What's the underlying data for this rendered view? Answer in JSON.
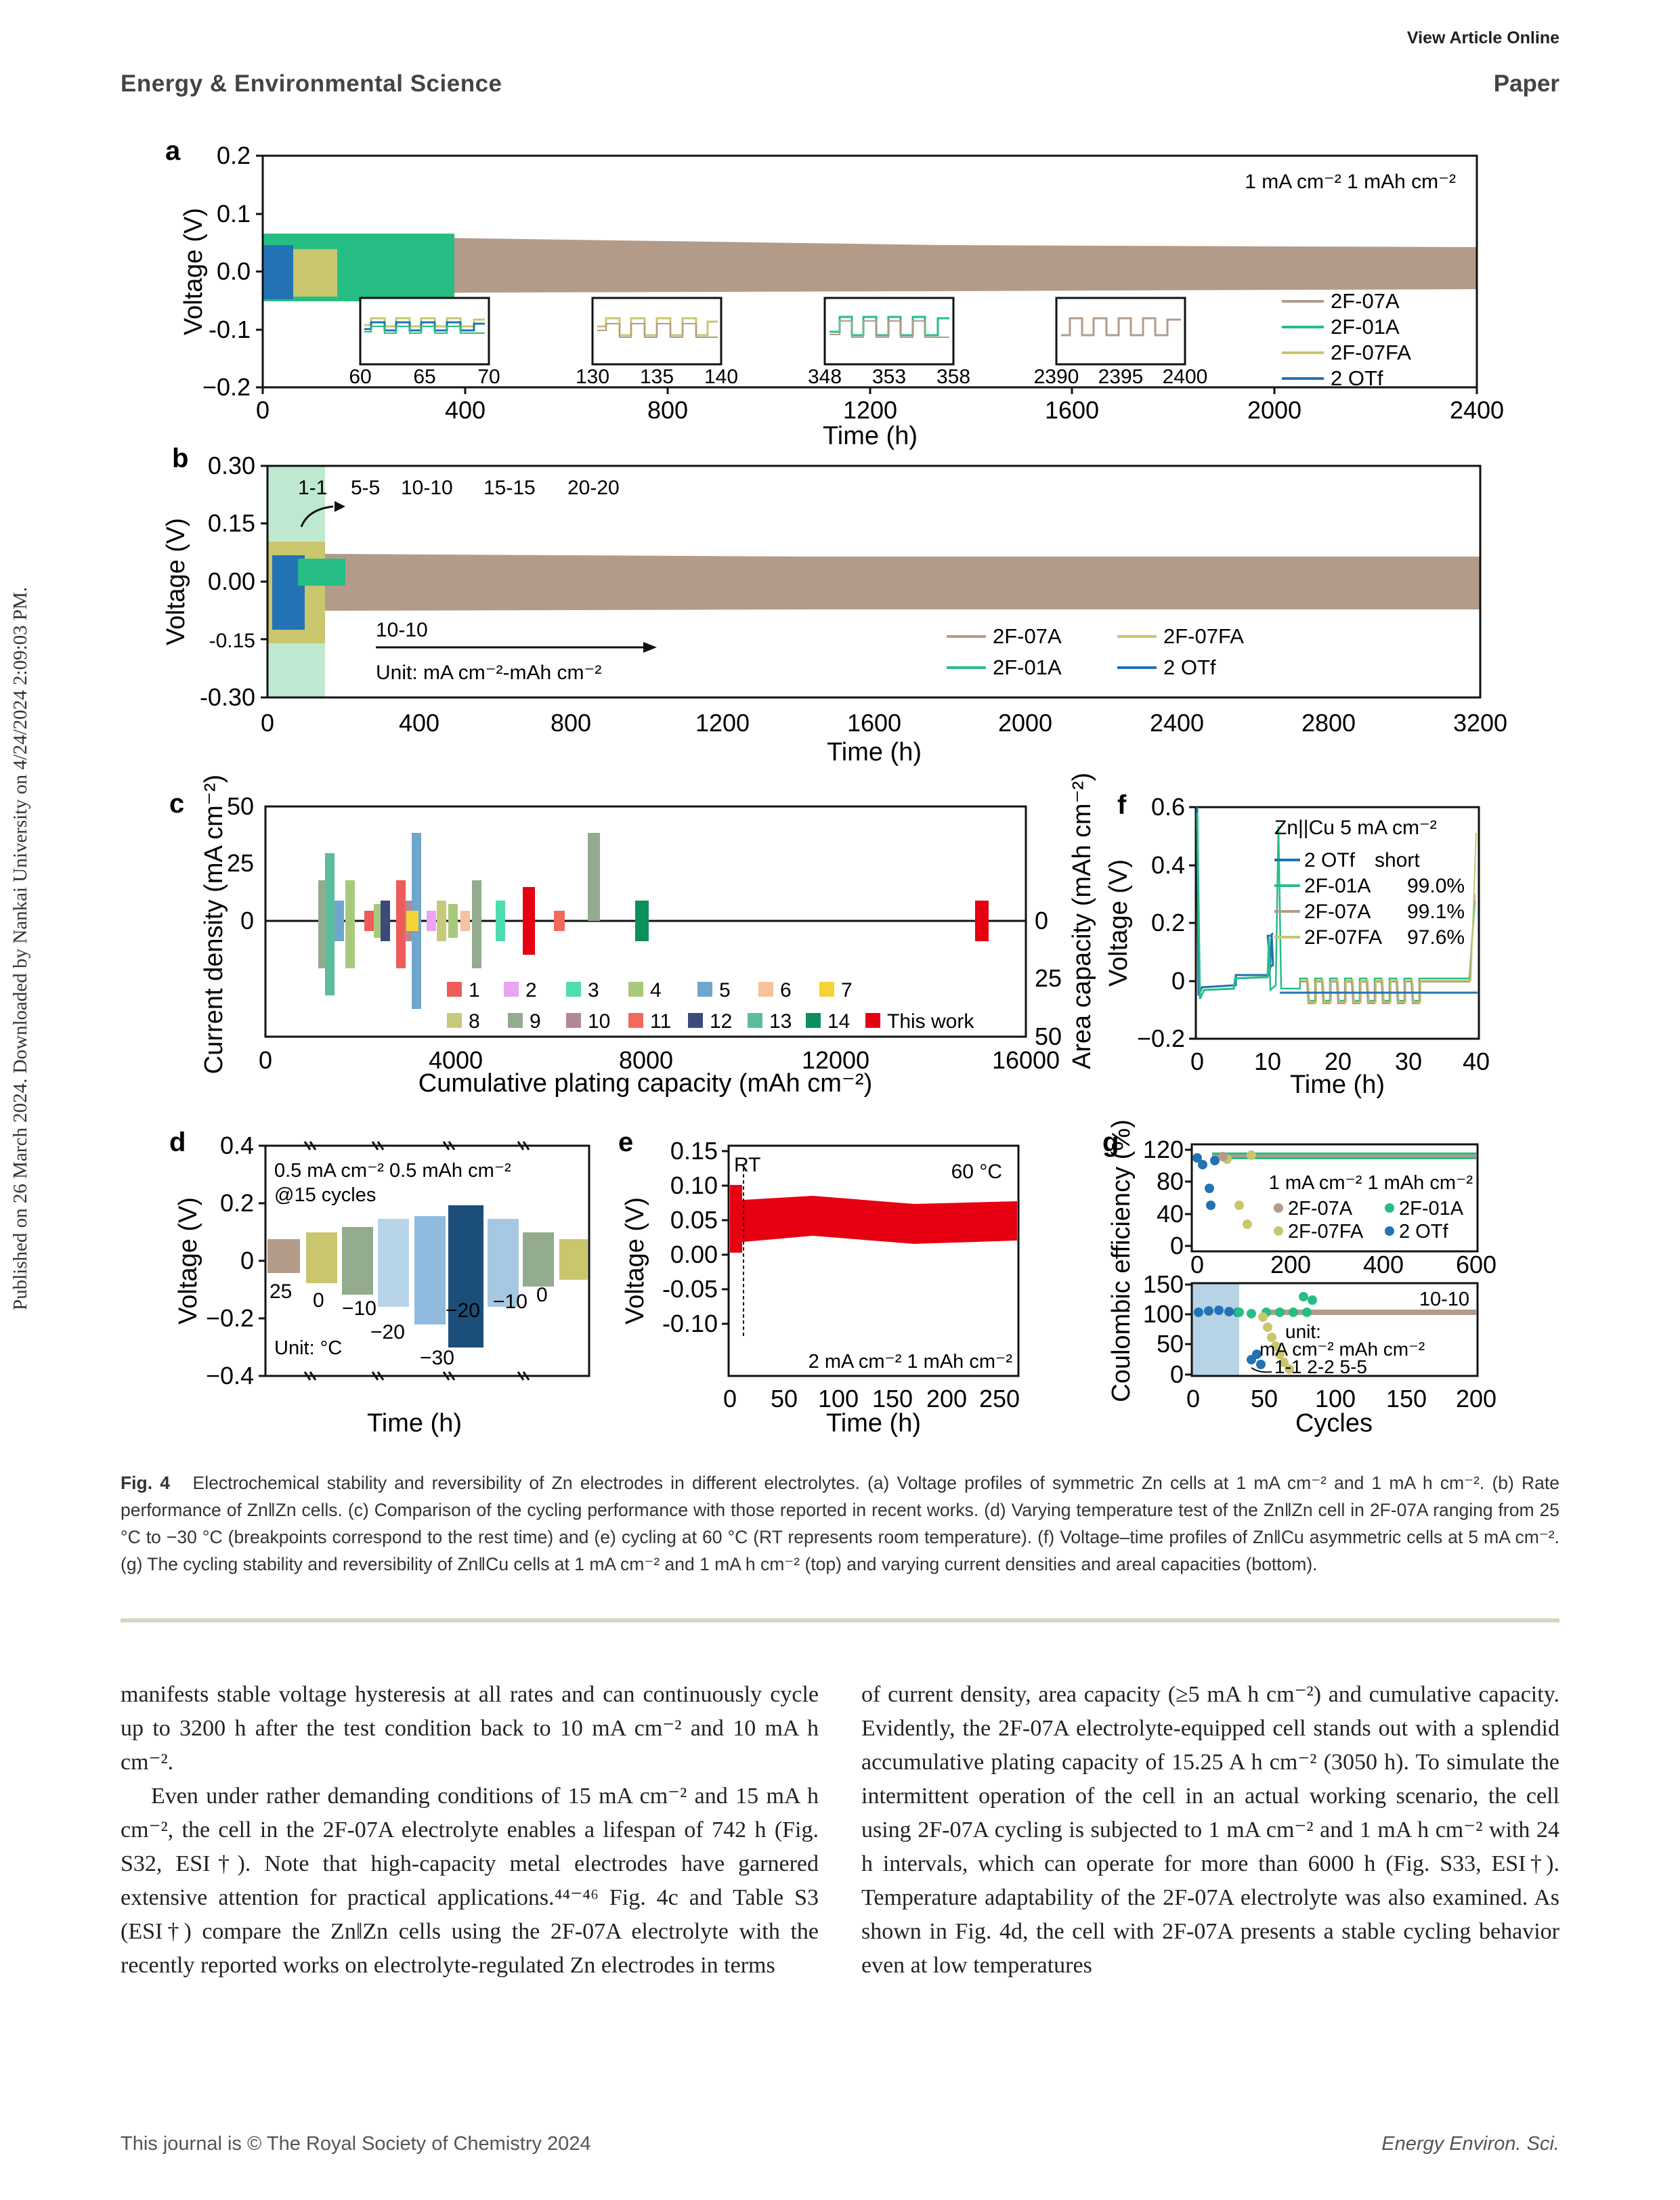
{
  "header": {
    "view_online": "View Article Online",
    "journal": "Energy & Environmental Science",
    "section": "Paper"
  },
  "sidebar_text": "Published on 26 March 2024. Downloaded by Nankai University on 4/24/2024 2:09:03 PM.",
  "colors": {
    "brown": "#b39b8a",
    "green": "#26be84",
    "yellow": "#c9c66e",
    "blue": "#2372b4",
    "red": "#e60012",
    "shade": "#bfe8d0"
  },
  "figure": {
    "panel_a": {
      "label": "a",
      "ylabel": "Voltage (V)",
      "xlabel": "Time (h)",
      "condition": "1 mA cm⁻²  1 mAh cm⁻²",
      "yticks": [
        "0.2",
        "0.1",
        "0.0",
        "-0.1",
        "−0.2"
      ],
      "xticks": [
        "0",
        "400",
        "800",
        "1200",
        "1600",
        "2000",
        "2400"
      ],
      "legend": [
        "2F-07A",
        "2F-01A",
        "2F-07FA",
        "2 OTf"
      ],
      "inset_ticks": [
        [
          "60",
          "65",
          "70"
        ],
        [
          "130",
          "135",
          "140"
        ],
        [
          "348",
          "353",
          "358"
        ],
        [
          "2390",
          "2395",
          "2400"
        ]
      ]
    },
    "panel_b": {
      "label": "b",
      "ylabel": "Voltage (V)",
      "xlabel": "Time (h)",
      "yticks": [
        "0.30",
        "0.15",
        "0.00",
        "-0.15",
        "-0.30"
      ],
      "xticks": [
        "0",
        "400",
        "800",
        "1200",
        "1600",
        "2000",
        "2400",
        "2800",
        "3200"
      ],
      "rates": [
        "1-1",
        "5-5",
        "10-10",
        "15-15",
        "20-20"
      ],
      "back_label": "10-10",
      "unit": "Unit: mA cm⁻²-mAh cm⁻²",
      "legend": [
        "2F-07A",
        "2F-01A",
        "2F-07FA",
        "2 OTf"
      ]
    },
    "panel_c": {
      "label": "c",
      "ylabel": "Current density (mA cm⁻²)",
      "ylabel_right": "Area capacity (mAh cm⁻²)",
      "xlabel": "Cumulative plating capacity (mAh cm⁻²)",
      "yticks": [
        "50",
        "25",
        "0"
      ],
      "yticks_right": [
        "0",
        "25",
        "50"
      ],
      "xticks": [
        "0",
        "4000",
        "8000",
        "12000",
        "16000"
      ],
      "legend": [
        "1",
        "2",
        "3",
        "4",
        "5",
        "6",
        "7",
        "8",
        "9",
        "10",
        "11",
        "12",
        "13",
        "14",
        "This work"
      ],
      "legend_colors": [
        "#ef5b5b",
        "#e9a4f2",
        "#4fdcb0",
        "#a8c97c",
        "#6fa6cc",
        "#f6c29d",
        "#f6d336",
        "#c7c97b",
        "#93ab8e",
        "#b38796",
        "#f26a5c",
        "#3c4a7a",
        "#5cbd9c",
        "#0c8f5b",
        "#e60012"
      ]
    },
    "panel_d": {
      "label": "d",
      "ylabel": "Voltage (V)",
      "xlabel": "Time (h)",
      "yticks": [
        "0.4",
        "0.2",
        "0",
        "−0.2",
        "−0.4"
      ],
      "condition": "0.5 mA cm⁻² 0.5 mAh cm⁻²",
      "cycles": "@15 cycles",
      "temps": [
        "25",
        "0",
        "−10",
        "−20",
        "−30",
        "−20",
        "−10",
        "0"
      ],
      "unit": "Unit: °C"
    },
    "panel_e": {
      "label": "e",
      "ylabel": "Voltage (V)",
      "xlabel": "Time (h)",
      "yticks": [
        "0.15",
        "0.10",
        "0.05",
        "0.00",
        "-0.05",
        "-0.10"
      ],
      "xticks": [
        "0",
        "50",
        "100",
        "150",
        "200",
        "250"
      ],
      "rt": "RT",
      "temp": "60 °C",
      "condition": "2 mA cm⁻² 1 mAh cm⁻²"
    },
    "panel_f": {
      "label": "f",
      "ylabel": "Voltage (V)",
      "xlabel": "Time (h)",
      "yticks": [
        "0.6",
        "0.4",
        "0.2",
        "0",
        "−0.2"
      ],
      "xticks": [
        "0",
        "10",
        "20",
        "30",
        "40"
      ],
      "title": "Zn||Cu   5 mA cm⁻²",
      "legend": [
        {
          "name": "2 OTf",
          "value": "short"
        },
        {
          "name": "2F-01A",
          "value": "99.0%"
        },
        {
          "name": "2F-07A",
          "value": "99.1%"
        },
        {
          "name": "2F-07FA",
          "value": "97.6%"
        }
      ]
    },
    "panel_g": {
      "label": "g",
      "ylabel": "Coulombic efficiency (%)",
      "xlabel": "Cycles",
      "top_yticks": [
        "120",
        "80",
        "40",
        "0"
      ],
      "top_xticks": [
        "0",
        "200",
        "400",
        "600"
      ],
      "top_condition": "1 mA cm⁻²  1 mAh cm⁻²",
      "legend": [
        "2F-07A",
        "2F-01A",
        "2F-07FA",
        "2 OTf"
      ],
      "bottom_yticks": [
        "150",
        "100",
        "50",
        "0"
      ],
      "bottom_xticks": [
        "0",
        "50",
        "100",
        "150",
        "200"
      ],
      "bottom_label": "10-10",
      "unit_l1": "unit:",
      "unit_l2": "mA cm⁻² mAh cm⁻²",
      "rates": "1-1  2-2  5-5"
    }
  },
  "caption": {
    "label": "Fig. 4",
    "text": "Electrochemical stability and reversibility of Zn electrodes in different electrolytes. (a) Voltage profiles of symmetric Zn cells at 1 mA cm⁻² and 1 mA h cm⁻². (b) Rate performance of Zn‖Zn cells. (c) Comparison of the cycling performance with those reported in recent works. (d) Varying temperature test of the Zn‖Zn cell in 2F-07A ranging from 25 °C to −30 °C (breakpoints correspond to the rest time) and (e) cycling at 60 °C (RT represents room temperature). (f) Voltage–time profiles of Zn‖Cu asymmetric cells at 5 mA cm⁻². (g) The cycling stability and reversibility of Zn‖Cu cells at 1 mA cm⁻² and 1 mA h cm⁻² (top) and varying current densities and areal capacities (bottom)."
  },
  "body": {
    "left_p1": "manifests stable voltage hysteresis at all rates and can continuously cycle up to 3200 h after the test condition back to 10 mA cm⁻² and 10 mA h cm⁻².",
    "left_p2": "Even under rather demanding conditions of 15 mA cm⁻² and 15 mA h cm⁻², the cell in the 2F-07A electrolyte enables a lifespan of 742 h (Fig. S32, ESI†). Note that high-capacity metal electrodes have garnered extensive attention for practical applications.⁴⁴⁻⁴⁶ Fig. 4c and Table S3 (ESI†) compare the Zn‖Zn cells using the 2F-07A electrolyte with the recently reported works on electrolyte-regulated Zn electrodes in terms",
    "right_p1": "of current density, area capacity (≥5 mA h cm⁻²) and cumulative capacity. Evidently, the 2F-07A electrolyte-equipped cell stands out with a splendid accumulative plating capacity of 15.25 A h cm⁻² (3050 h). To simulate the intermittent operation of the cell in an actual working scenario, the cell using 2F-07A cycling is subjected to 1 mA cm⁻² and 1 mA h cm⁻² with 24 h intervals, which can operate for more than 6000 h (Fig. S33, ESI†). Temperature adaptability of the 2F-07A electrolyte was also examined. As shown in Fig. 4d, the cell with 2F-07A presents a stable cycling behavior even at low temperatures"
  },
  "footer": {
    "left": "This journal is © The Royal Society of Chemistry 2024",
    "right": "Energy Environ. Sci."
  }
}
